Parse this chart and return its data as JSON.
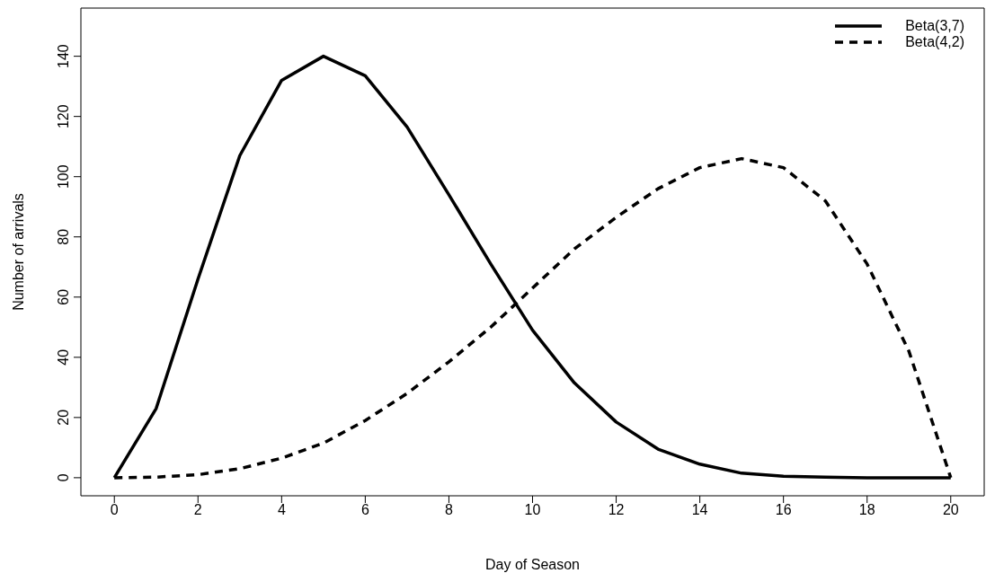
{
  "chart_data": {
    "type": "line",
    "xlabel": "Day of Season",
    "ylabel": "Number of arrivals",
    "x": [
      0,
      1,
      2,
      3,
      4,
      5,
      6,
      7,
      8,
      9,
      10,
      11,
      12,
      13,
      14,
      15,
      16,
      17,
      18,
      19,
      20
    ],
    "series": [
      {
        "name": "Beta(3,7)",
        "color": "#000000",
        "line_style": "solid",
        "values": [
          0,
          23,
          66,
          107,
          132,
          140,
          133.5,
          116.5,
          94,
          71,
          49,
          31.5,
          18.5,
          9.5,
          4.5,
          1.5,
          0.5,
          0.2,
          0,
          0,
          0
        ]
      },
      {
        "name": "Beta(4,2)",
        "color": "#000000",
        "line_style": "dashed",
        "values": [
          0,
          0.2,
          1,
          3,
          6.5,
          11.5,
          19,
          28,
          38.5,
          50,
          63,
          76,
          86.5,
          96,
          103,
          106,
          103,
          92,
          71,
          42,
          0
        ]
      }
    ],
    "xlim": [
      -0.8,
      20.8
    ],
    "xticks": [
      0,
      2,
      4,
      6,
      8,
      10,
      12,
      14,
      16,
      18,
      20
    ],
    "ylim": [
      -6,
      156
    ],
    "yticks": [
      0,
      20,
      40,
      60,
      80,
      100,
      120,
      140
    ],
    "grid": false,
    "legend": "top right",
    "marker": "none"
  }
}
